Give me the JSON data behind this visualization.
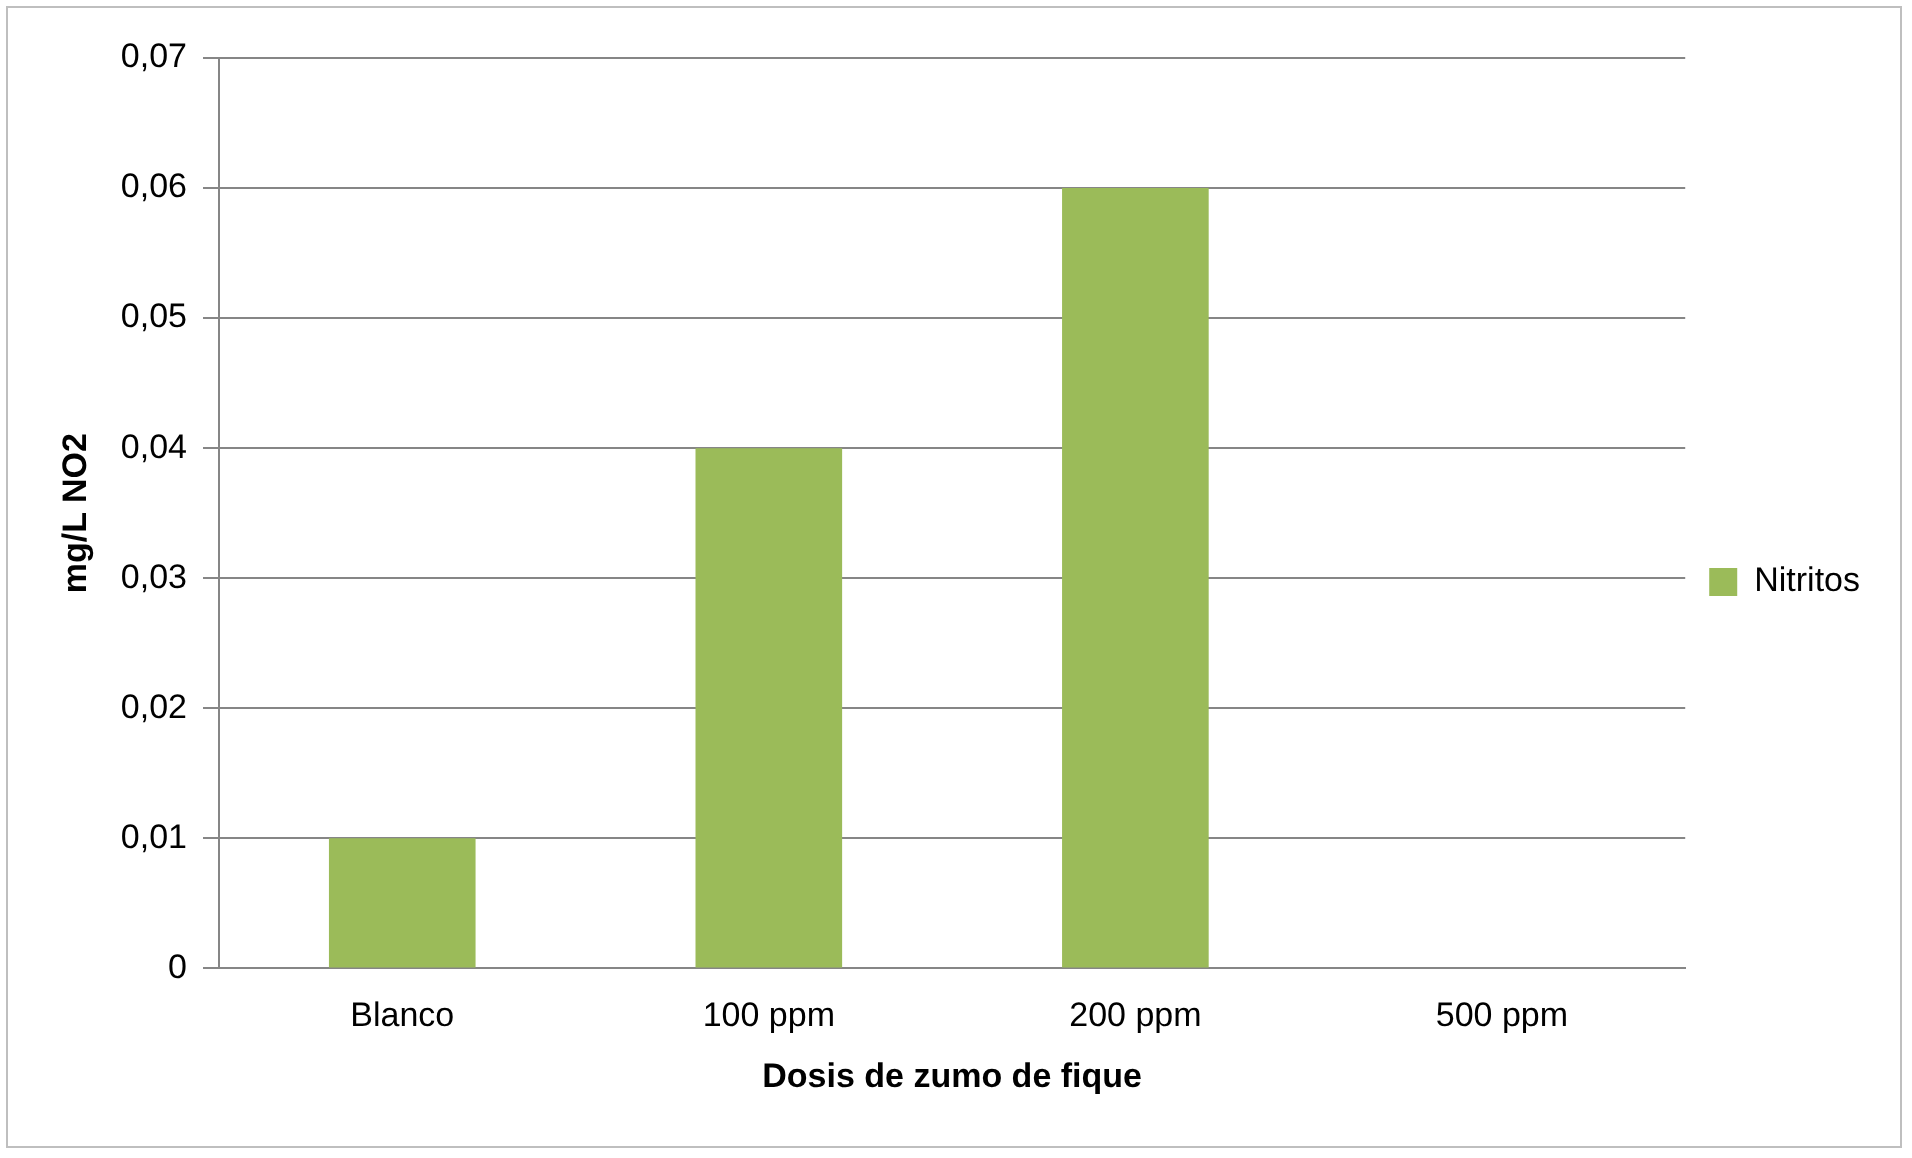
{
  "chart_data": {
    "type": "bar",
    "xlabel": "Dosis de zumo de fique",
    "ylabel": "mg/L NO2",
    "categories": [
      "Blanco",
      "100 ppm",
      "200 ppm",
      "500 ppm"
    ],
    "series": [
      {
        "name": "Nitritos",
        "color": "#9bbb59",
        "values": [
          0.01,
          0.04,
          0.06,
          0
        ]
      }
    ],
    "ylim": [
      0,
      0.07
    ],
    "yticks": [
      0,
      {
        "value": 0.01,
        "label": "0,01"
      },
      {
        "value": 0.02,
        "label": "0,02"
      },
      {
        "value": 0.03,
        "label": "0,03"
      },
      {
        "value": 0.04,
        "label": "0,04"
      },
      {
        "value": 0.05,
        "label": "0,05"
      },
      {
        "value": 0.06,
        "label": "0,06"
      },
      {
        "value": 0.07,
        "label": "0,07"
      }
    ],
    "grid": "y",
    "legend": "right"
  }
}
